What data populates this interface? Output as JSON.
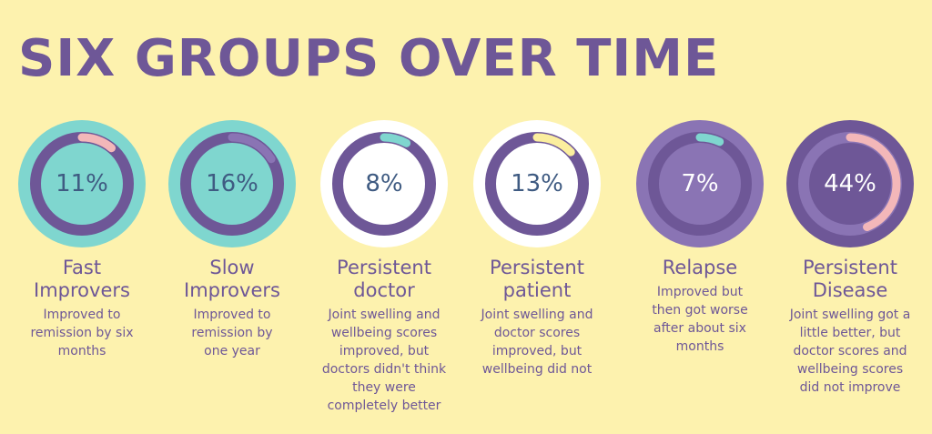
{
  "title": "SIX GROUPS OVER TIME",
  "colors": {
    "background": "#fdf2ae",
    "purple": "#6e5797",
    "teal": "#7fd6cf",
    "pink": "#f3b7b9",
    "yellow": "#fbee9e",
    "lavender": "#8a74b4",
    "white": "#ffffff"
  },
  "groups": [
    {
      "percent": "11%",
      "value": 11,
      "name": "Fast\nImprovers",
      "description": "Improved to\nremission by six\nmonths"
    },
    {
      "percent": "16%",
      "value": 16,
      "name": "Slow\nImprovers",
      "description": "Improved to\nremission by\none year"
    },
    {
      "percent": "8%",
      "value": 8,
      "name": "Persistent\ndoctor",
      "description": "Joint swelling and\nwellbeing scores\nimproved, but\ndoctors didn't think\nthey were\ncompletely better"
    },
    {
      "percent": "13%",
      "value": 13,
      "name": "Persistent\npatient",
      "description": "Joint swelling and\ndoctor scores\nimproved, but\nwellbeing did not"
    },
    {
      "percent": "7%",
      "value": 7,
      "name": "Relapse",
      "description": "Improved but\nthen got worse\nafter about six\nmonths"
    },
    {
      "percent": "44%",
      "value": 44,
      "name": "Persistent\nDisease",
      "description": "Joint swelling got a\nlittle better, but\ndoctor scores and\nwellbeing scores\ndid not improve"
    }
  ]
}
